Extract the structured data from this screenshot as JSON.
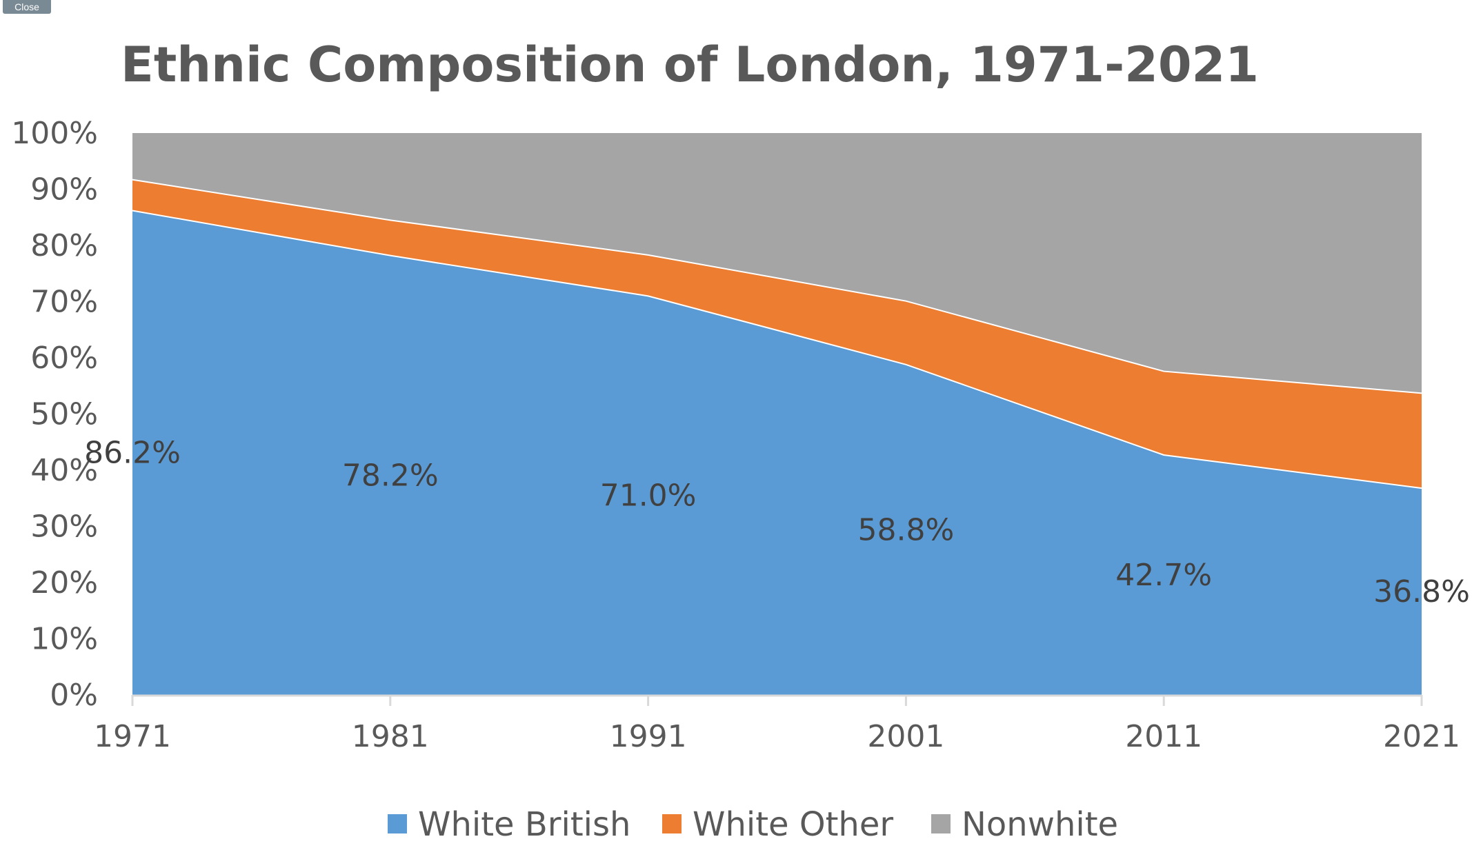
{
  "close_label": "Close",
  "chart_data": {
    "type": "area",
    "stacked": true,
    "title": "Ethnic Composition of London, 1971-2021",
    "categories": [
      "1971",
      "1981",
      "1991",
      "2001",
      "2011",
      "2021"
    ],
    "y_ticks": [
      "0%",
      "10%",
      "20%",
      "30%",
      "40%",
      "50%",
      "60%",
      "70%",
      "80%",
      "90%",
      "100%"
    ],
    "ylim": [
      0,
      100
    ],
    "series": [
      {
        "name": "White British",
        "color": "#5b9bd5",
        "values": [
          86.2,
          78.2,
          71.0,
          58.8,
          42.7,
          36.8
        ]
      },
      {
        "name": "White Other",
        "color": "#ed7d31",
        "values": [
          5.5,
          6.3,
          7.3,
          11.3,
          14.9,
          16.9
        ]
      },
      {
        "name": "Nonwhite",
        "color": "#a5a5a5",
        "values": [
          8.3,
          15.5,
          21.7,
          29.9,
          42.4,
          46.3
        ]
      }
    ],
    "data_labels": [
      "86.2%",
      "78.2%",
      "71.0%",
      "58.8%",
      "42.7%",
      "36.8%"
    ],
    "legend_position": "bottom"
  }
}
